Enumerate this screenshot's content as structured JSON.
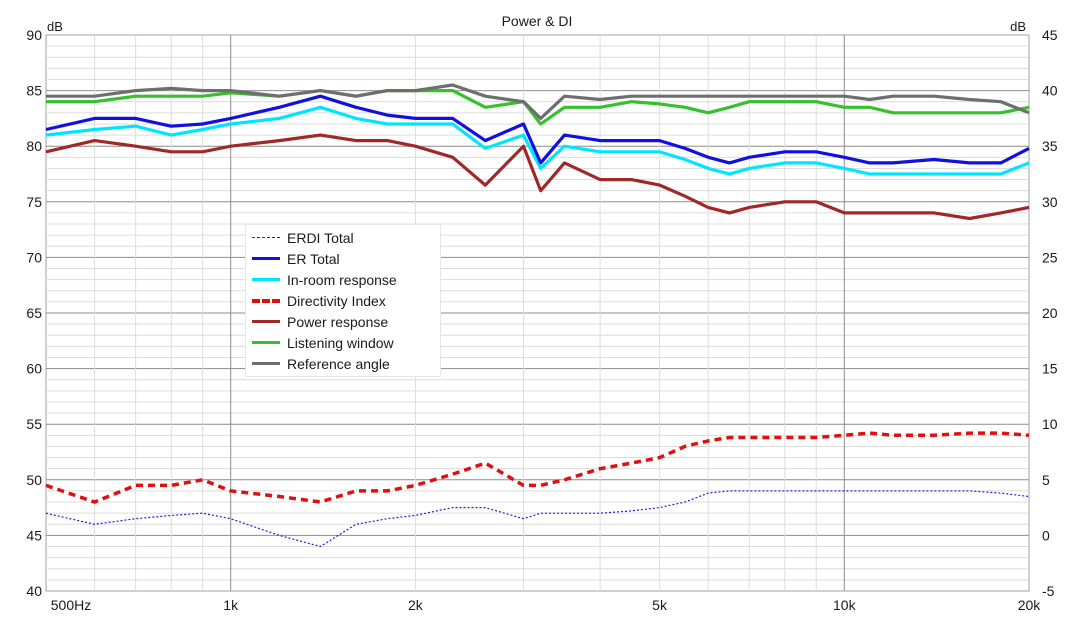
{
  "chart_data": {
    "type": "line",
    "title": "Power & DI",
    "left_axis": {
      "unit_label": "dB",
      "ylim": [
        40,
        90
      ],
      "ticks": [
        40,
        45,
        50,
        55,
        60,
        65,
        70,
        75,
        80,
        85,
        90
      ]
    },
    "right_axis": {
      "unit_label": "dB",
      "ylim": [
        -5,
        45
      ],
      "ticks": [
        -5,
        0,
        5,
        10,
        15,
        20,
        25,
        30,
        35,
        40,
        45
      ]
    },
    "x_axis": {
      "scale": "log",
      "xlim": [
        500,
        20000
      ],
      "tick_values": [
        500,
        1000,
        2000,
        5000,
        10000,
        20000
      ],
      "tick_labels": [
        "500Hz",
        "1k",
        "2k",
        "5k",
        "10k",
        "20k"
      ]
    },
    "grid": true,
    "legend_placement": "center-left",
    "x": [
      500,
      600,
      700,
      800,
      900,
      1000,
      1200,
      1400,
      1600,
      1800,
      2000,
      2300,
      2600,
      3000,
      3200,
      3500,
      4000,
      4500,
      5000,
      5500,
      6000,
      6500,
      7000,
      8000,
      9000,
      10000,
      11000,
      12000,
      14000,
      16000,
      18000,
      20000
    ],
    "series": [
      {
        "name": "ERDI Total",
        "color": "#1f1fd6",
        "style": "dotted",
        "axis": "right",
        "values": [
          2,
          1,
          1.5,
          1.8,
          2,
          1.5,
          0,
          -1,
          1,
          1.5,
          1.8,
          2.5,
          2.5,
          1.5,
          2,
          2,
          2,
          2.2,
          2.5,
          3,
          3.8,
          4,
          4,
          4,
          4,
          4,
          4,
          4,
          4,
          4,
          3.8,
          3.5
        ]
      },
      {
        "name": "ER Total",
        "color": "#1010e0",
        "style": "solid",
        "axis": "left",
        "values": [
          81.5,
          82.5,
          82.5,
          81.8,
          82,
          82.5,
          83.5,
          84.5,
          83.5,
          82.8,
          82.5,
          82.5,
          80.5,
          82,
          78.5,
          81,
          80.5,
          80.5,
          80.5,
          79.8,
          79,
          78.5,
          79,
          79.5,
          79.5,
          79,
          78.5,
          78.5,
          78.8,
          78.5,
          78.5,
          79.8
        ]
      },
      {
        "name": "In-room response",
        "color": "#00e5ff",
        "style": "solid",
        "axis": "left",
        "values": [
          81,
          81.5,
          81.8,
          81,
          81.5,
          82,
          82.5,
          83.5,
          82.5,
          82,
          82,
          82,
          79.8,
          81,
          78,
          80,
          79.5,
          79.5,
          79.5,
          78.8,
          78,
          77.5,
          78,
          78.5,
          78.5,
          78,
          77.5,
          77.5,
          77.5,
          77.5,
          77.5,
          78.5
        ]
      },
      {
        "name": "Directivity Index",
        "color": "#e01010",
        "style": "dashed",
        "axis": "right",
        "values": [
          4.5,
          3,
          4.5,
          4.5,
          5,
          4,
          3.5,
          3,
          4,
          4,
          4.5,
          5.5,
          6.5,
          4.5,
          4.5,
          5,
          6,
          6.5,
          7,
          8,
          8.5,
          8.8,
          8.8,
          8.8,
          8.8,
          9,
          9.2,
          9,
          9,
          9.2,
          9.2,
          9
        ]
      },
      {
        "name": "Power response",
        "color": "#a02828",
        "style": "solid",
        "axis": "left",
        "values": [
          79.5,
          80.5,
          80,
          79.5,
          79.5,
          80,
          80.5,
          81,
          80.5,
          80.5,
          80,
          79,
          76.5,
          80,
          76,
          78.5,
          77,
          77,
          76.5,
          75.5,
          74.5,
          74,
          74.5,
          75,
          75,
          74,
          74,
          74,
          74,
          73.5,
          74,
          74.5
        ]
      },
      {
        "name": "Listening window",
        "color": "#35c02c",
        "style": "solid",
        "axis": "left",
        "values": [
          84,
          84,
          84.5,
          84.5,
          84.5,
          84.8,
          84.5,
          85,
          84.5,
          85,
          85,
          85,
          83.5,
          84,
          82,
          83.5,
          83.5,
          84,
          83.8,
          83.5,
          83,
          83.5,
          84,
          84,
          84,
          83.5,
          83.5,
          83,
          83,
          83,
          83,
          83.5
        ]
      },
      {
        "name": "Reference angle",
        "color": "#6e6e6e",
        "style": "solid",
        "axis": "left",
        "values": [
          84.5,
          84.5,
          85,
          85.2,
          85,
          85,
          84.5,
          85,
          84.5,
          85,
          85,
          85.5,
          84.5,
          84,
          82.5,
          84.5,
          84.2,
          84.5,
          84.5,
          84.5,
          84.5,
          84.5,
          84.5,
          84.5,
          84.5,
          84.5,
          84.2,
          84.5,
          84.5,
          84.2,
          84,
          83
        ]
      }
    ]
  }
}
